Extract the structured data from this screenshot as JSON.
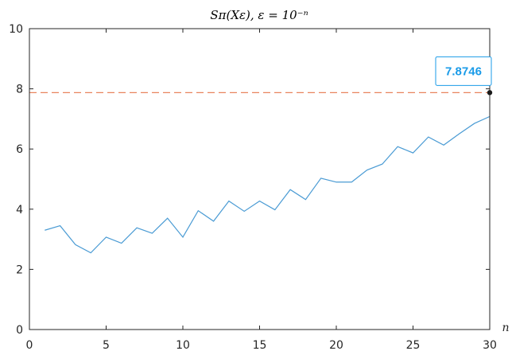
{
  "chart_data": {
    "type": "line",
    "title": "Sπ(Xε), ε = 10⁻ⁿ",
    "xlabel": "n",
    "ylabel": "",
    "xlim": [
      0,
      30
    ],
    "ylim": [
      0,
      10
    ],
    "xticks": [
      0,
      5,
      10,
      15,
      20,
      25,
      30
    ],
    "yticks": [
      0,
      2,
      4,
      6,
      8,
      10
    ],
    "grid": false,
    "series": [
      {
        "color": "#4a9bd4",
        "style": "solid",
        "x": [
          1,
          2,
          3,
          4,
          5,
          6,
          7,
          8,
          9,
          10,
          11,
          12,
          13,
          14,
          15,
          16,
          17,
          18,
          19,
          20,
          21,
          22,
          23,
          24,
          25,
          26,
          27,
          28,
          29,
          30
        ],
        "y": [
          3.3,
          3.45,
          2.82,
          2.55,
          3.07,
          2.87,
          3.38,
          3.2,
          3.7,
          3.07,
          3.95,
          3.6,
          4.27,
          3.93,
          4.27,
          3.98,
          4.65,
          4.32,
          5.03,
          4.9,
          4.9,
          5.3,
          5.5,
          6.08,
          5.87,
          6.4,
          6.13,
          6.5,
          6.85,
          7.08
        ]
      },
      {
        "color": "#e8845e",
        "style": "dashed",
        "x": [
          0,
          30
        ],
        "y": [
          7.8746,
          7.8746
        ]
      }
    ],
    "annotation": {
      "label": "7.8746",
      "x": 30,
      "y": 7.8746,
      "text_color": "#1a9be8",
      "border_color": "#1a9be8"
    }
  }
}
